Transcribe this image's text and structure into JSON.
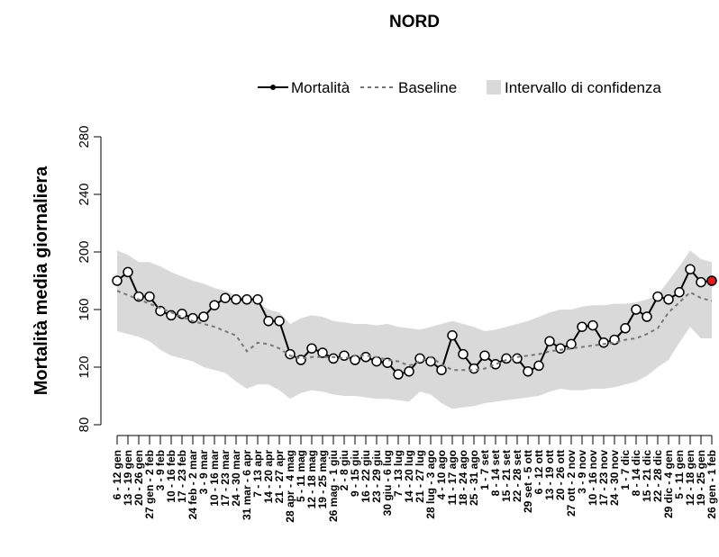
{
  "chart_data": {
    "type": "line",
    "title": "NORD",
    "ylabel": "Mortalità media giornaliera",
    "categories": [
      "6 - 12 gen",
      "13 - 19 gen",
      "20 - 26 gen",
      "27 gen - 2 feb",
      "3 - 9 feb",
      "10 - 16 feb",
      "17 - 23 feb",
      "24 feb - 2 mar",
      "3 - 9 mar",
      "10 - 16 mar",
      "17 - 23 mar",
      "24 - 30 mar",
      "31 mar - 6 apr",
      "7 - 13 apr",
      "14 - 20 apr",
      "21 - 27 apr",
      "28 apr - 4 mag",
      "5 - 11 mag",
      "12 - 18 mag",
      "19 - 25 mag",
      "26 mag - 1 giu",
      "2 - 8 giu",
      "9 - 15 giu",
      "16 - 22 giu",
      "23 - 29 giu",
      "30 giu - 6 lug",
      "7 - 13 lug",
      "14 - 20 lug",
      "21 - 27 lug",
      "28 lug - 3 ago",
      "4 - 10 ago",
      "11 - 17 ago",
      "18 - 24 ago",
      "25 - 31 ago",
      "1 - 7 set",
      "8 - 14 set",
      "15 - 21 set",
      "22 - 28 set",
      "29 set - 5 ott",
      "6 - 12 ott",
      "13 - 19 ott",
      "20 - 26 ott",
      "27 ott - 2 nov",
      "3 - 9 nov",
      "10 - 16 nov",
      "17 - 23 nov",
      "24 - 30 nov",
      "1 - 7 dic",
      "8 - 14 dic",
      "15 - 21 dic",
      "22 - 28 dic",
      "29 dic - 4 gen",
      "5 - 11 gen",
      "12 - 18 gen",
      "19 - 25 gen",
      "26 gen - 1 feb"
    ],
    "series": [
      {
        "name": "Mortalità",
        "color": "#000000",
        "values": [
          180,
          186,
          169,
          169,
          159,
          156,
          157,
          154,
          155,
          163,
          168,
          167,
          167,
          167,
          152,
          152,
          129,
          125,
          133,
          130,
          126,
          128,
          125,
          127,
          124,
          123,
          115,
          117,
          126,
          124,
          118,
          142,
          129,
          119,
          128,
          122,
          126,
          126,
          117,
          121,
          138,
          133,
          136,
          148,
          149,
          137,
          139,
          147,
          160,
          155,
          169,
          167,
          172,
          188,
          179,
          180
        ]
      },
      {
        "name": "Baseline",
        "color": "#777777",
        "values": [
          173,
          170,
          167,
          164,
          161,
          158,
          155,
          152,
          150,
          148,
          145,
          142,
          131,
          137,
          136,
          133,
          128,
          126,
          127,
          127,
          127,
          126,
          128,
          128,
          127,
          125,
          124,
          121,
          124,
          127,
          122,
          118,
          118,
          118,
          119,
          122,
          125,
          127,
          128,
          129,
          131,
          132,
          133,
          134,
          135,
          136,
          137,
          139,
          140,
          143,
          147,
          158,
          165,
          172,
          168,
          166
        ]
      },
      {
        "name": "Intervallo di confidenza",
        "color": "#d9d9d9",
        "upper": [
          201,
          198,
          193,
          193,
          190,
          186,
          183,
          180,
          178,
          175,
          173,
          170,
          168,
          165,
          160,
          158,
          150,
          154,
          156,
          155,
          152,
          151,
          150,
          150,
          149,
          150,
          148,
          147,
          146,
          148,
          150,
          152,
          150,
          148,
          145,
          146,
          148,
          150,
          152,
          155,
          158,
          160,
          160,
          162,
          163,
          163,
          164,
          164,
          165,
          167,
          170,
          180,
          190,
          201,
          195,
          193
        ],
        "lower": [
          145,
          143,
          141,
          138,
          132,
          128,
          126,
          124,
          120,
          118,
          116,
          110,
          105,
          108,
          108,
          104,
          98,
          102,
          104,
          103,
          101,
          100,
          100,
          99,
          98,
          98,
          97,
          96,
          103,
          101,
          95,
          91,
          92,
          93,
          95,
          96,
          97,
          98,
          99,
          100,
          103,
          105,
          104,
          104,
          105,
          105,
          106,
          108,
          110,
          114,
          120,
          125,
          137,
          148,
          140,
          140
        ]
      }
    ],
    "last_point_color": "#e41a1c",
    "ylim": [
      80,
      280
    ],
    "yticks": [
      80,
      120,
      160,
      200,
      240,
      280
    ],
    "grid": false,
    "legend": "top"
  }
}
